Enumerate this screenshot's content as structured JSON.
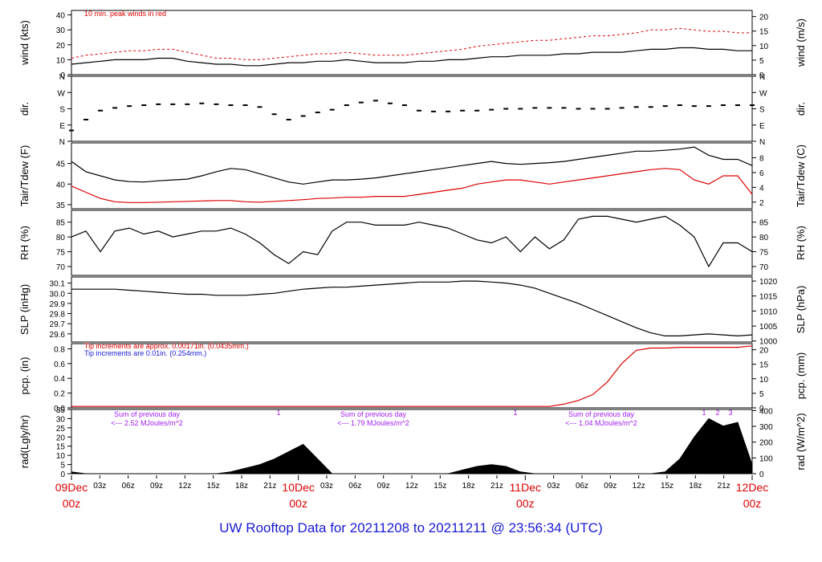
{
  "footer": {
    "title": "UW Rooftop Data for 20211208  to  20211211 @ 23:56:34  (UTC)"
  },
  "colors": {
    "black": "#000000",
    "red": "#dd0000",
    "blue": "#1a1ad6",
    "purple": "#a020f0"
  },
  "chart_data": {
    "type": "line",
    "x_range": [
      "2021-12-09 00:00",
      "2021-12-12 00:00"
    ],
    "x_ticks": {
      "hours": [
        "03z",
        "06z",
        "09z",
        "12z",
        "15z",
        "18z",
        "21z",
        "03z",
        "06z",
        "09z",
        "12z",
        "15z",
        "18z",
        "21z",
        "03z",
        "06z",
        "09z",
        "12z",
        "15z",
        "18z",
        "21z"
      ],
      "days": [
        {
          "top": "09Dec",
          "bottom": "00z"
        },
        {
          "top": "10Dec",
          "bottom": "00z"
        },
        {
          "top": "11Dec",
          "bottom": "00z"
        },
        {
          "top": "12Dec",
          "bottom": "00z"
        }
      ]
    },
    "panels": [
      {
        "key": "wind",
        "ylabel_left": "wind (kts)",
        "ylabel_right": "wind (m/s)",
        "ylim": [
          0,
          43
        ],
        "left_ticks": [
          "0",
          "10",
          "20",
          "30",
          "40"
        ],
        "left_tick_values": [
          0,
          10,
          20,
          30,
          40
        ],
        "right_ticks": [
          "0",
          "5",
          "10",
          "15",
          "20"
        ],
        "right_tick_values": [
          0,
          9.72,
          19.44,
          29.16,
          38.88
        ],
        "note": "10 min. peak winds in red",
        "series": [
          {
            "name": "wind",
            "color": "#000000",
            "values": [
              7,
              8,
              9,
              10,
              10,
              10,
              11,
              11,
              9,
              8,
              7,
              7,
              6,
              6,
              7,
              8,
              8,
              9,
              9,
              10,
              9,
              8,
              8,
              8,
              9,
              9,
              10,
              10,
              11,
              12,
              12,
              13,
              13,
              13,
              14,
              14,
              15,
              15,
              15,
              16,
              17,
              17,
              18,
              18,
              17,
              17,
              16,
              16
            ]
          },
          {
            "name": "10 min. peak",
            "color": "#dd0000",
            "values": [
              11,
              13,
              14,
              15,
              16,
              16,
              17,
              17,
              15,
              13,
              11,
              11,
              10,
              10,
              11,
              12,
              13,
              14,
              14,
              15,
              14,
              13,
              13,
              13,
              14,
              15,
              16,
              17,
              19,
              20,
              21,
              22,
              23,
              23,
              24,
              25,
              26,
              26,
              27,
              28,
              30,
              30,
              31,
              30,
              29,
              29,
              28,
              28
            ]
          }
        ]
      },
      {
        "key": "dir",
        "ylabel_left": "dir.",
        "ylabel_right": "dir.",
        "ylim": [
          0,
          360
        ],
        "left_ticks": [
          "N",
          "E",
          "S",
          "W",
          "N"
        ],
        "left_tick_values": [
          0,
          90,
          180,
          270,
          360
        ],
        "right_ticks": [
          "N",
          "E",
          "S",
          "W",
          "N"
        ],
        "right_tick_values": [
          0,
          90,
          180,
          270,
          360
        ],
        "series": [
          {
            "name": "dir",
            "color": "#000000",
            "values": [
              60,
              120,
              170,
              185,
              195,
              200,
              205,
              205,
              205,
              210,
              205,
              200,
              200,
              190,
              150,
              120,
              140,
              160,
              175,
              200,
              215,
              225,
              210,
              200,
              170,
              165,
              165,
              170,
              170,
              175,
              180,
              180,
              185,
              185,
              185,
              180,
              180,
              180,
              185,
              190,
              190,
              195,
              200,
              195,
              195,
              200,
              200,
              200
            ]
          }
        ]
      },
      {
        "key": "temp",
        "ylabel_left": "Tair/Tdew (F)",
        "ylabel_right": "Tair/Tdew (C)",
        "ylim": [
          34,
          50
        ],
        "left_ticks": [
          "35",
          "40",
          "45"
        ],
        "left_tick_values": [
          35,
          40,
          45
        ],
        "right_ticks": [
          "2",
          "4",
          "6",
          "8"
        ],
        "right_tick_values": [
          35.6,
          39.2,
          42.8,
          46.4
        ],
        "series": [
          {
            "name": "Tair",
            "color": "#000000",
            "values": [
              45.5,
              43,
              42,
              41,
              40.6,
              40.5,
              40.8,
              41,
              41.2,
              42,
              43,
              43.8,
              43.5,
              42.5,
              41.5,
              40.5,
              40,
              40.5,
              41,
              41,
              41.2,
              41.5,
              42,
              42.5,
              43,
              43.5,
              44,
              44.5,
              45,
              45.5,
              45,
              44.8,
              45,
              45.2,
              45.5,
              46,
              46.5,
              47,
              47.5,
              48,
              48,
              48.2,
              48.5,
              49,
              47,
              46,
              46,
              44.5
            ]
          },
          {
            "name": "Tdew",
            "color": "#dd0000",
            "values": [
              39.5,
              38,
              36.5,
              35.7,
              35.5,
              35.5,
              35.6,
              35.7,
              35.8,
              35.9,
              36,
              36,
              35.7,
              35.6,
              35.8,
              36,
              36.2,
              36.5,
              36.6,
              36.8,
              36.8,
              37,
              37,
              37,
              37.5,
              38,
              38.5,
              39,
              40,
              40.5,
              41,
              41,
              40.5,
              40,
              40.5,
              41,
              41.5,
              42,
              42.5,
              43,
              43.5,
              43.8,
              43.5,
              41,
              40,
              42,
              42,
              37.5
            ]
          }
        ]
      },
      {
        "key": "rh",
        "ylabel_left": "RH (%)",
        "ylabel_right": "RH (%)",
        "ylim": [
          67,
          89
        ],
        "left_ticks": [
          "70",
          "75",
          "80",
          "85"
        ],
        "left_tick_values": [
          70,
          75,
          80,
          85
        ],
        "right_ticks": [
          "70",
          "75",
          "80",
          "85"
        ],
        "right_tick_values": [
          70,
          75,
          80,
          85
        ],
        "series": [
          {
            "name": "RH",
            "color": "#000000",
            "values": [
              80,
              82,
              75,
              82,
              83,
              81,
              82,
              80,
              81,
              82,
              82,
              83,
              81,
              78,
              74,
              71,
              75,
              74,
              82,
              85,
              85,
              84,
              84,
              84,
              85,
              84,
              83,
              81,
              79,
              78,
              80,
              75,
              80,
              76,
              79,
              86,
              87,
              87,
              86,
              85,
              86,
              87,
              84,
              80,
              70,
              78,
              78,
              75
            ]
          }
        ]
      },
      {
        "key": "slp",
        "ylabel_left": "SLP (inHg)",
        "ylabel_right": "SLP (hPa)",
        "ylim": [
          29.52,
          30.16
        ],
        "left_ticks": [
          "29.6",
          "29.7",
          "29.8",
          "29.9",
          "30.0",
          "30.1"
        ],
        "left_tick_values": [
          29.6,
          29.7,
          29.8,
          29.9,
          30.0,
          30.1
        ],
        "right_ticks": [
          "1000",
          "1005",
          "1010",
          "1015",
          "1020"
        ],
        "right_tick_values": [
          29.53,
          29.677,
          29.825,
          29.973,
          30.12
        ],
        "series": [
          {
            "name": "SLP",
            "color": "#000000",
            "values": [
              30.04,
              30.04,
              30.04,
              30.04,
              30.03,
              30.02,
              30.01,
              30.0,
              29.99,
              29.99,
              29.98,
              29.98,
              29.98,
              29.99,
              30.0,
              30.02,
              30.04,
              30.05,
              30.06,
              30.06,
              30.07,
              30.08,
              30.09,
              30.1,
              30.11,
              30.11,
              30.11,
              30.12,
              30.12,
              30.11,
              30.1,
              30.08,
              30.05,
              30.0,
              29.95,
              29.9,
              29.84,
              29.78,
              29.72,
              29.66,
              29.61,
              29.58,
              29.58,
              29.59,
              29.6,
              29.59,
              29.58,
              29.59
            ]
          }
        ]
      },
      {
        "key": "pcp",
        "ylabel_left": "pcp. (in)",
        "ylabel_right": "pcp. (mm)",
        "ylim": [
          0,
          0.87
        ],
        "left_ticks": [
          "0.0",
          "0.2",
          "0.4",
          "0.6",
          "0.8"
        ],
        "left_tick_values": [
          0,
          0.2,
          0.4,
          0.6,
          0.8
        ],
        "right_ticks": [
          "0",
          "5",
          "10",
          "15",
          "20"
        ],
        "right_tick_values": [
          0,
          0.197,
          0.394,
          0.591,
          0.787
        ],
        "notes": [
          {
            "text": "Tip increments are approx. 0.00171in. (0.0435mm.)",
            "color": "#dd0000"
          },
          {
            "text": "Tip increments are 0.01in. (0.254mm.)",
            "color": "#1a1ad6"
          }
        ],
        "series": [
          {
            "name": "pcp",
            "color": "#dd0000",
            "values": [
              0.02,
              0.02,
              0.02,
              0.02,
              0.02,
              0.02,
              0.02,
              0.02,
              0.02,
              0.02,
              0.02,
              0.02,
              0.02,
              0.02,
              0.02,
              0.02,
              0.02,
              0.02,
              0.02,
              0.02,
              0.02,
              0.02,
              0.02,
              0.02,
              0.02,
              0.02,
              0.02,
              0.02,
              0.02,
              0.02,
              0.02,
              0.02,
              0.02,
              0.02,
              0.05,
              0.1,
              0.18,
              0.35,
              0.6,
              0.78,
              0.81,
              0.81,
              0.82,
              0.82,
              0.82,
              0.82,
              0.82,
              0.84
            ]
          }
        ]
      },
      {
        "key": "rad",
        "ylabel_left": "rad(Lgly/hr)",
        "ylabel_right": "rad (W/m^2)",
        "ylim": [
          0,
          35
        ],
        "left_ticks": [
          "0",
          "5",
          "10",
          "15",
          "20",
          "25",
          "30",
          "35"
        ],
        "left_tick_values": [
          0,
          5,
          10,
          15,
          20,
          25,
          30,
          35
        ],
        "right_ticks": [
          "0",
          "100",
          "200",
          "300",
          "400"
        ],
        "right_tick_values": [
          0,
          8.6,
          17.2,
          25.8,
          34.4
        ],
        "series": [
          {
            "name": "rad",
            "color": "#000000",
            "values": [
              1,
              0,
              0,
              0,
              0,
              0,
              0,
              0,
              0,
              0,
              0,
              1,
              3,
              5,
              8,
              12,
              16,
              8,
              0,
              0,
              0,
              0,
              0,
              0,
              0,
              0,
              0,
              2,
              4,
              5,
              4,
              1,
              0,
              0,
              0,
              0,
              0,
              0,
              0,
              0,
              0,
              1,
              8,
              20,
              30,
              26,
              28,
              5
            ]
          }
        ],
        "daily_notes": [
          {
            "line1": "Sum of previous day",
            "line2": "<--- 2.52 MJoules/m^2"
          },
          {
            "line1": "Sum of previous day",
            "line2": "<--- 1.79 MJoules/m^2"
          },
          {
            "line1": "Sum of previous day",
            "line2": "<--- 1.04 MJoules/m^2"
          }
        ],
        "markers": [
          "1",
          "1",
          "1",
          "2",
          "3"
        ]
      }
    ]
  }
}
